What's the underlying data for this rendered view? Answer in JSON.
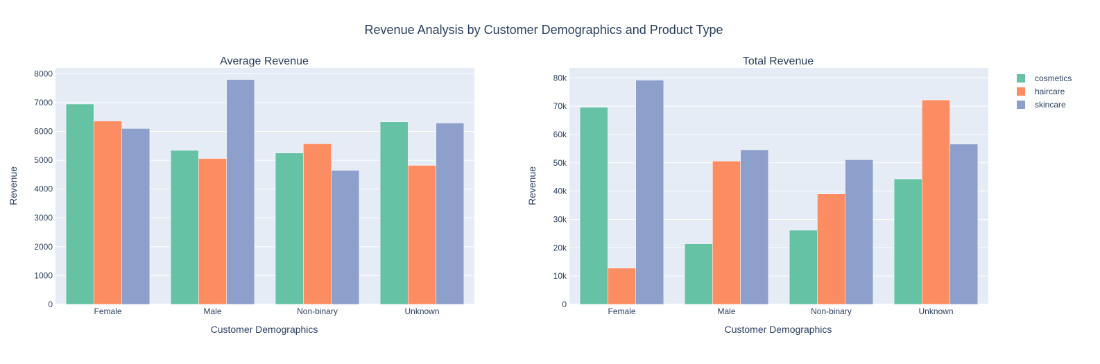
{
  "title": "Revenue Analysis by Customer Demographics and Product Type",
  "legend": {
    "items": [
      {
        "label": "cosmetics",
        "color": "#66c2a5"
      },
      {
        "label": "haircare",
        "color": "#fc8d62"
      },
      {
        "label": "skincare",
        "color": "#8da0cb"
      }
    ]
  },
  "chart_data": [
    {
      "type": "bar",
      "title": "Average Revenue",
      "xlabel": "Customer Demographics",
      "ylabel": "Revenue",
      "categories": [
        "Female",
        "Male",
        "Non-binary",
        "Unknown"
      ],
      "ylim": [
        0,
        8200
      ],
      "yticks": [
        0,
        1000,
        2000,
        3000,
        4000,
        5000,
        6000,
        7000,
        8000
      ],
      "ytick_labels": [
        "0",
        "1000",
        "2000",
        "3000",
        "4000",
        "5000",
        "6000",
        "7000",
        "8000"
      ],
      "series": [
        {
          "name": "cosmetics",
          "values": [
            6950,
            5340,
            5250,
            6330
          ]
        },
        {
          "name": "haircare",
          "values": [
            6360,
            5060,
            5570,
            4820
          ]
        },
        {
          "name": "skincare",
          "values": [
            6100,
            7800,
            4650,
            6290
          ]
        }
      ],
      "grid": true
    },
    {
      "type": "bar",
      "title": "Total Revenue",
      "xlabel": "Customer Demographics",
      "ylabel": "Revenue",
      "categories": [
        "Female",
        "Male",
        "Non-binary",
        "Unknown"
      ],
      "ylim": [
        0,
        83500
      ],
      "yticks": [
        0,
        10000,
        20000,
        30000,
        40000,
        50000,
        60000,
        70000,
        80000
      ],
      "ytick_labels": [
        "0",
        "10k",
        "20k",
        "30k",
        "40k",
        "50k",
        "60k",
        "70k",
        "80k"
      ],
      "series": [
        {
          "name": "cosmetics",
          "values": [
            69600,
            21400,
            26200,
            44300
          ]
        },
        {
          "name": "haircare",
          "values": [
            12800,
            50600,
            39000,
            72200
          ]
        },
        {
          "name": "skincare",
          "values": [
            79200,
            54600,
            51100,
            56600
          ]
        }
      ],
      "grid": true
    }
  ]
}
